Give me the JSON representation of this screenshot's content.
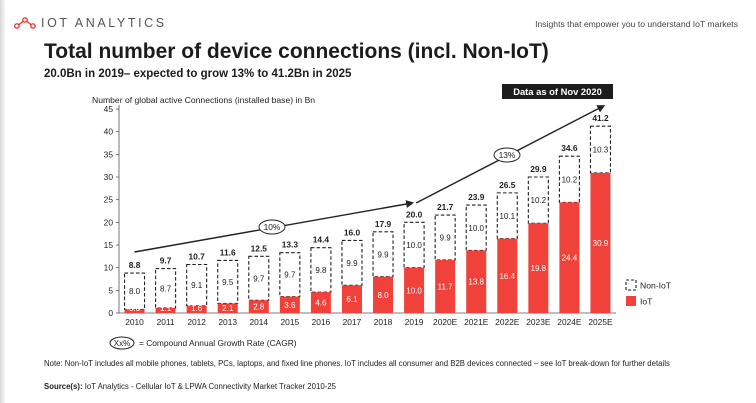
{
  "header": {
    "logo_word": "IOT ANALYTICS",
    "tagline": "Insights that empower you to understand IoT markets"
  },
  "title": "Total number of device connections (incl. Non-IoT)",
  "subtitle": "20.0Bn in 2019– expected to grow 13% to 41.2Bn in 2025",
  "data_label": "Data as of Nov 2020",
  "cagr_key": {
    "symbol": "Xx%",
    "text": "= Compound Annual Growth Rate (CAGR)"
  },
  "note": "Note: Non-IoT includes all mobile phones, tablets, PCs, laptops, and fixed line phones. IoT includes all consumer and B2B devices connected – see IoT break-down for further details",
  "source": {
    "label": "Source(s):",
    "text": "IoT Analytics - Cellular IoT & LPWA Connectivity Market Tracker 2010-25"
  },
  "colors": {
    "iot": "#f0413a",
    "accent": "#ef3b36",
    "text": "#222222",
    "dark_box": "#1c1c1c"
  },
  "chart_data": {
    "type": "bar",
    "stacked": true,
    "ylabel": "Number of global active Connections (installed base) in Bn",
    "ylim": [
      0,
      45
    ],
    "yticks": [
      0,
      5,
      10,
      15,
      20,
      25,
      30,
      35,
      40,
      45
    ],
    "categories": [
      "2010",
      "2011",
      "2012",
      "2013",
      "2014",
      "2015",
      "2016",
      "2017",
      "2018",
      "2019",
      "2020E",
      "2021E",
      "2022E",
      "2023E",
      "2024E",
      "2025E"
    ],
    "series": [
      {
        "name": "IoT",
        "color": "#f0413a",
        "style": "solid",
        "values": [
          0.8,
          1.1,
          1.6,
          2.1,
          2.8,
          3.6,
          4.6,
          6.1,
          8.0,
          10.0,
          11.7,
          13.8,
          16.4,
          19.8,
          24.4,
          30.9
        ]
      },
      {
        "name": "Non-IoT",
        "color": "#ffffff",
        "style": "dashed",
        "values": [
          8.0,
          8.7,
          9.1,
          9.5,
          9.7,
          9.7,
          9.8,
          9.9,
          9.9,
          10.0,
          9.9,
          10.0,
          10.1,
          10.2,
          10.2,
          10.3
        ]
      }
    ],
    "totals": [
      "8.8",
      "9.7",
      "10.7",
      "11.6",
      "12.5",
      "13.3",
      "14.4",
      "16.0",
      "17.9",
      "20.0",
      "21.7",
      "23.9",
      "26.5",
      "29.9",
      "34.6",
      "41.2"
    ],
    "cagr": [
      {
        "label": "10%",
        "from": "2010",
        "to": "2019"
      },
      {
        "label": "13%",
        "from": "2019",
        "to": "2025E"
      }
    ],
    "legend": [
      "Non-IoT",
      "IoT"
    ],
    "legend_position": "right"
  }
}
